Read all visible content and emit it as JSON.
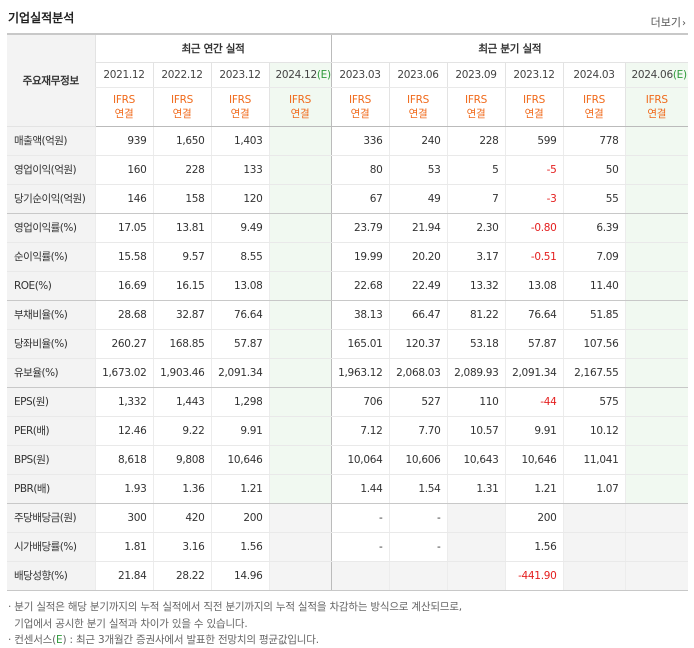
{
  "title": "기업실적분석",
  "more_label": "더보기",
  "header": {
    "row_label": "주요재무정보",
    "annual_group": "최근 연간 실적",
    "quarter_group": "최근 분기 실적",
    "annual_periods": [
      "2021.12",
      "2022.12",
      "2023.12",
      "2024.12"
    ],
    "quarter_periods": [
      "2023.03",
      "2023.06",
      "2023.09",
      "2023.12",
      "2024.03",
      "2024.06"
    ],
    "estimate_mark": "(E)",
    "basis_line1": "IFRS",
    "basis_line2": "연결"
  },
  "rows": [
    {
      "label": "매출액(억원)",
      "annual": [
        "939",
        "1,650",
        "1,403",
        ""
      ],
      "quarter": [
        "336",
        "240",
        "228",
        "599",
        "778",
        ""
      ]
    },
    {
      "label": "영업이익(억원)",
      "annual": [
        "160",
        "228",
        "133",
        ""
      ],
      "quarter": [
        "80",
        "53",
        "5",
        "-5",
        "50",
        ""
      ]
    },
    {
      "label": "당기순이익(억원)",
      "annual": [
        "146",
        "158",
        "120",
        ""
      ],
      "quarter": [
        "67",
        "49",
        "7",
        "-3",
        "55",
        ""
      ]
    },
    {
      "label": "영업이익률(%)",
      "annual": [
        "17.05",
        "13.81",
        "9.49",
        ""
      ],
      "quarter": [
        "23.79",
        "21.94",
        "2.30",
        "-0.80",
        "6.39",
        ""
      ]
    },
    {
      "label": "순이익률(%)",
      "annual": [
        "15.58",
        "9.57",
        "8.55",
        ""
      ],
      "quarter": [
        "19.99",
        "20.20",
        "3.17",
        "-0.51",
        "7.09",
        ""
      ]
    },
    {
      "label": "ROE(%)",
      "annual": [
        "16.69",
        "16.15",
        "13.08",
        ""
      ],
      "quarter": [
        "22.68",
        "22.49",
        "13.32",
        "13.08",
        "11.40",
        ""
      ]
    },
    {
      "label": "부채비율(%)",
      "annual": [
        "28.68",
        "32.87",
        "76.64",
        ""
      ],
      "quarter": [
        "38.13",
        "66.47",
        "81.22",
        "76.64",
        "51.85",
        ""
      ]
    },
    {
      "label": "당좌비율(%)",
      "annual": [
        "260.27",
        "168.85",
        "57.87",
        ""
      ],
      "quarter": [
        "165.01",
        "120.37",
        "53.18",
        "57.87",
        "107.56",
        ""
      ]
    },
    {
      "label": "유보율(%)",
      "annual": [
        "1,673.02",
        "1,903.46",
        "2,091.34",
        ""
      ],
      "quarter": [
        "1,963.12",
        "2,068.03",
        "2,089.93",
        "2,091.34",
        "2,167.55",
        ""
      ]
    },
    {
      "label": "EPS(원)",
      "annual": [
        "1,332",
        "1,443",
        "1,298",
        ""
      ],
      "quarter": [
        "706",
        "527",
        "110",
        "-44",
        "575",
        ""
      ]
    },
    {
      "label": "PER(배)",
      "annual": [
        "12.46",
        "9.22",
        "9.91",
        ""
      ],
      "quarter": [
        "7.12",
        "7.70",
        "10.57",
        "9.91",
        "10.12",
        ""
      ]
    },
    {
      "label": "BPS(원)",
      "annual": [
        "8,618",
        "9,808",
        "10,646",
        ""
      ],
      "quarter": [
        "10,064",
        "10,606",
        "10,643",
        "10,646",
        "11,041",
        ""
      ]
    },
    {
      "label": "PBR(배)",
      "annual": [
        "1.93",
        "1.36",
        "1.21",
        ""
      ],
      "quarter": [
        "1.44",
        "1.54",
        "1.31",
        "1.21",
        "1.07",
        ""
      ]
    },
    {
      "label": "주당배당금(원)",
      "annual": [
        "300",
        "420",
        "200",
        ""
      ],
      "quarter": [
        "-",
        "-",
        "",
        "200",
        "",
        ""
      ]
    },
    {
      "label": "시가배당률(%)",
      "annual": [
        "1.81",
        "3.16",
        "1.56",
        ""
      ],
      "quarter": [
        "-",
        "-",
        "",
        "1.56",
        "",
        ""
      ]
    },
    {
      "label": "배당성향(%)",
      "annual": [
        "21.84",
        "28.22",
        "14.96",
        ""
      ],
      "quarter": [
        "",
        "",
        "",
        "-441.90",
        "",
        ""
      ]
    }
  ],
  "notes": {
    "line1": "· 분기 실적은 해당 분기까지의 누적 실적에서 직전 분기까지의 누적 실적을 차감하는 방식으로 계산되므로,",
    "line2": "  기업에서 공시한 분기 실적과 차이가 있을 수 있습니다.",
    "line3_prefix": "· 컨센서스(",
    "line3_mark": "E",
    "line3_suffix": ") : 최근 3개월간 증권사에서 발표한 전망치의 평균값입니다."
  },
  "colors": {
    "ifrs": "#f06a1b",
    "negative": "#e41e1e",
    "estimate": "#2e9a3b",
    "projection_bg": "#f1f9f1"
  }
}
